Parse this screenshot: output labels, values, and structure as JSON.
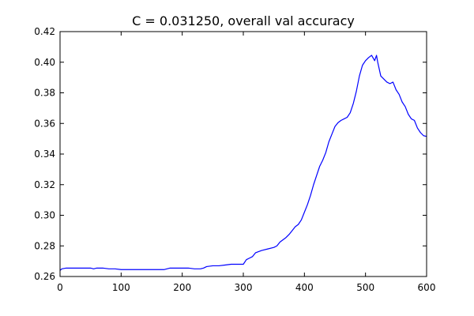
{
  "chart_data": {
    "type": "line",
    "title": "C = 0.031250, overall val accuracy",
    "xlabel": "",
    "ylabel": "",
    "xlim": [
      0,
      600
    ],
    "ylim": [
      0.26,
      0.42
    ],
    "x_ticks": [
      0,
      100,
      200,
      300,
      400,
      500,
      600
    ],
    "x_tick_labels": [
      "0",
      "100",
      "200",
      "300",
      "400",
      "500",
      "600"
    ],
    "y_ticks": [
      0.26,
      0.28,
      0.3,
      0.32,
      0.34,
      0.36,
      0.38,
      0.4,
      0.42
    ],
    "y_tick_labels": [
      "0.26",
      "0.28",
      "0.30",
      "0.32",
      "0.34",
      "0.36",
      "0.38",
      "0.40",
      "0.42"
    ],
    "grid": false,
    "legend": "none",
    "series": [
      {
        "color": "#0000ff",
        "x": [
          0,
          3,
          10,
          20,
          30,
          40,
          50,
          55,
          60,
          70,
          80,
          90,
          100,
          110,
          120,
          140,
          160,
          170,
          175,
          180,
          190,
          200,
          210,
          220,
          230,
          235,
          240,
          250,
          260,
          270,
          280,
          290,
          300,
          305,
          310,
          315,
          320,
          330,
          340,
          350,
          355,
          360,
          365,
          370,
          375,
          380,
          385,
          390,
          395,
          400,
          405,
          410,
          415,
          420,
          425,
          430,
          435,
          440,
          445,
          450,
          455,
          460,
          465,
          470,
          475,
          480,
          485,
          490,
          495,
          500,
          505,
          510,
          515,
          518,
          520,
          525,
          530,
          535,
          540,
          545,
          550,
          555,
          560,
          565,
          570,
          575,
          580,
          585,
          590,
          595,
          600
        ],
        "y": [
          0.264,
          0.265,
          0.2655,
          0.2655,
          0.2655,
          0.2655,
          0.2655,
          0.265,
          0.2655,
          0.2655,
          0.265,
          0.265,
          0.2645,
          0.2645,
          0.2645,
          0.2645,
          0.2645,
          0.2645,
          0.265,
          0.2655,
          0.2655,
          0.2655,
          0.2655,
          0.265,
          0.265,
          0.2655,
          0.2665,
          0.267,
          0.267,
          0.2675,
          0.268,
          0.268,
          0.268,
          0.271,
          0.272,
          0.273,
          0.2755,
          0.277,
          0.278,
          0.279,
          0.28,
          0.2825,
          0.284,
          0.2855,
          0.2875,
          0.29,
          0.2925,
          0.294,
          0.297,
          0.302,
          0.307,
          0.313,
          0.32,
          0.326,
          0.332,
          0.336,
          0.341,
          0.348,
          0.353,
          0.358,
          0.3605,
          0.362,
          0.363,
          0.364,
          0.367,
          0.373,
          0.381,
          0.391,
          0.398,
          0.401,
          0.403,
          0.4045,
          0.401,
          0.4045,
          0.4,
          0.391,
          0.389,
          0.387,
          0.386,
          0.387,
          0.382,
          0.379,
          0.374,
          0.371,
          0.366,
          0.363,
          0.362,
          0.357,
          0.354,
          0.352,
          0.3515
        ]
      }
    ]
  }
}
